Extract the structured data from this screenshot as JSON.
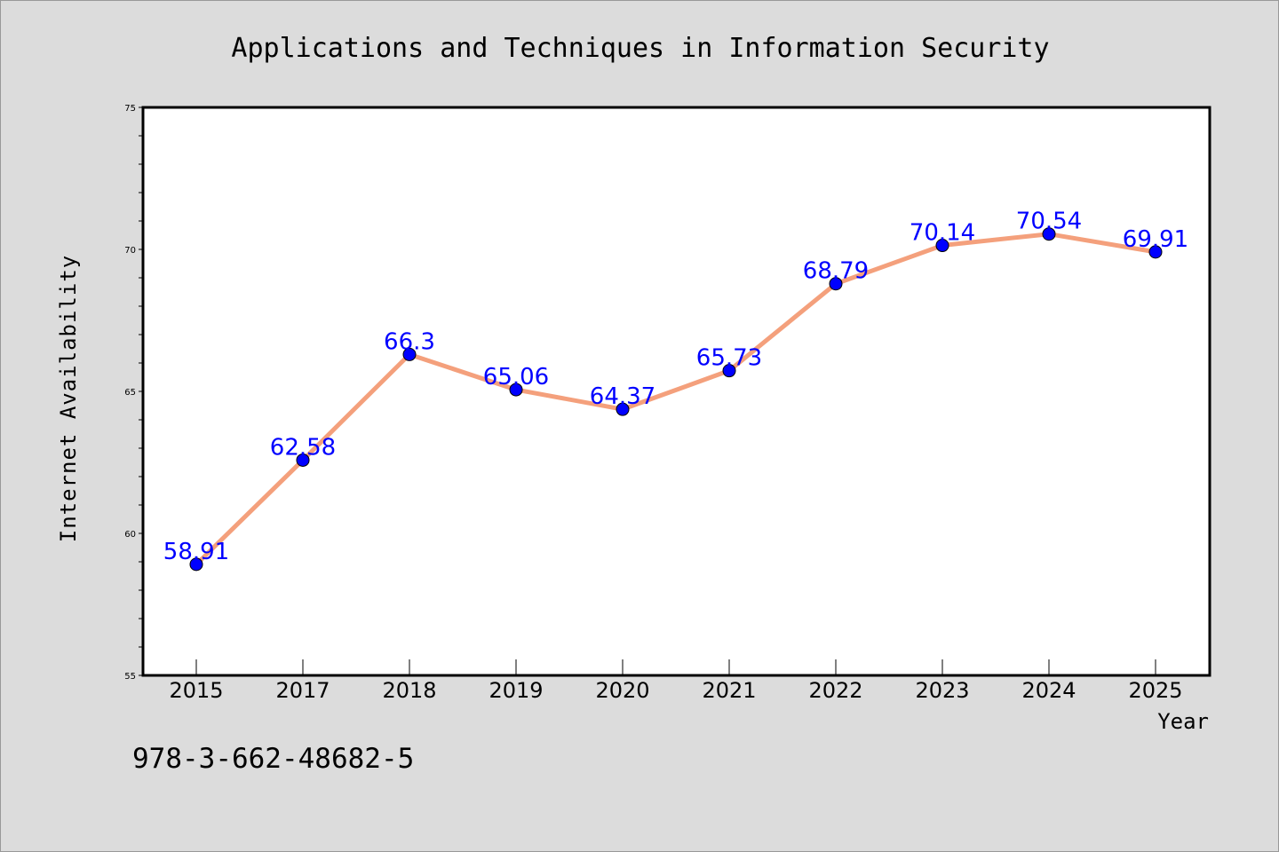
{
  "chart_data": {
    "type": "line",
    "title": "Applications and Techniques in Information Security",
    "xlabel": "Year",
    "ylabel": "Internet Availability",
    "categories": [
      "2015",
      "2017",
      "2018",
      "2019",
      "2020",
      "2021",
      "2022",
      "2023",
      "2024",
      "2025"
    ],
    "values": [
      58.91,
      62.58,
      66.3,
      65.06,
      64.37,
      65.73,
      68.79,
      70.14,
      70.54,
      69.91
    ],
    "data_labels": [
      "58.91",
      "62.58",
      "66.3",
      "65.06",
      "64.37",
      "65.73",
      "68.79",
      "70.14",
      "70.54",
      "69.91"
    ],
    "ylim": [
      55,
      75
    ],
    "yticks": [
      "55",
      "60",
      "65",
      "70",
      "75"
    ],
    "grid": false,
    "line_color": "#f4a07c",
    "marker_color": "#0000ff",
    "label_color": "#0000ff",
    "background": "#dcdcdc",
    "plot_background": "#ffffff"
  },
  "footnote": "978-3-662-48682-5"
}
